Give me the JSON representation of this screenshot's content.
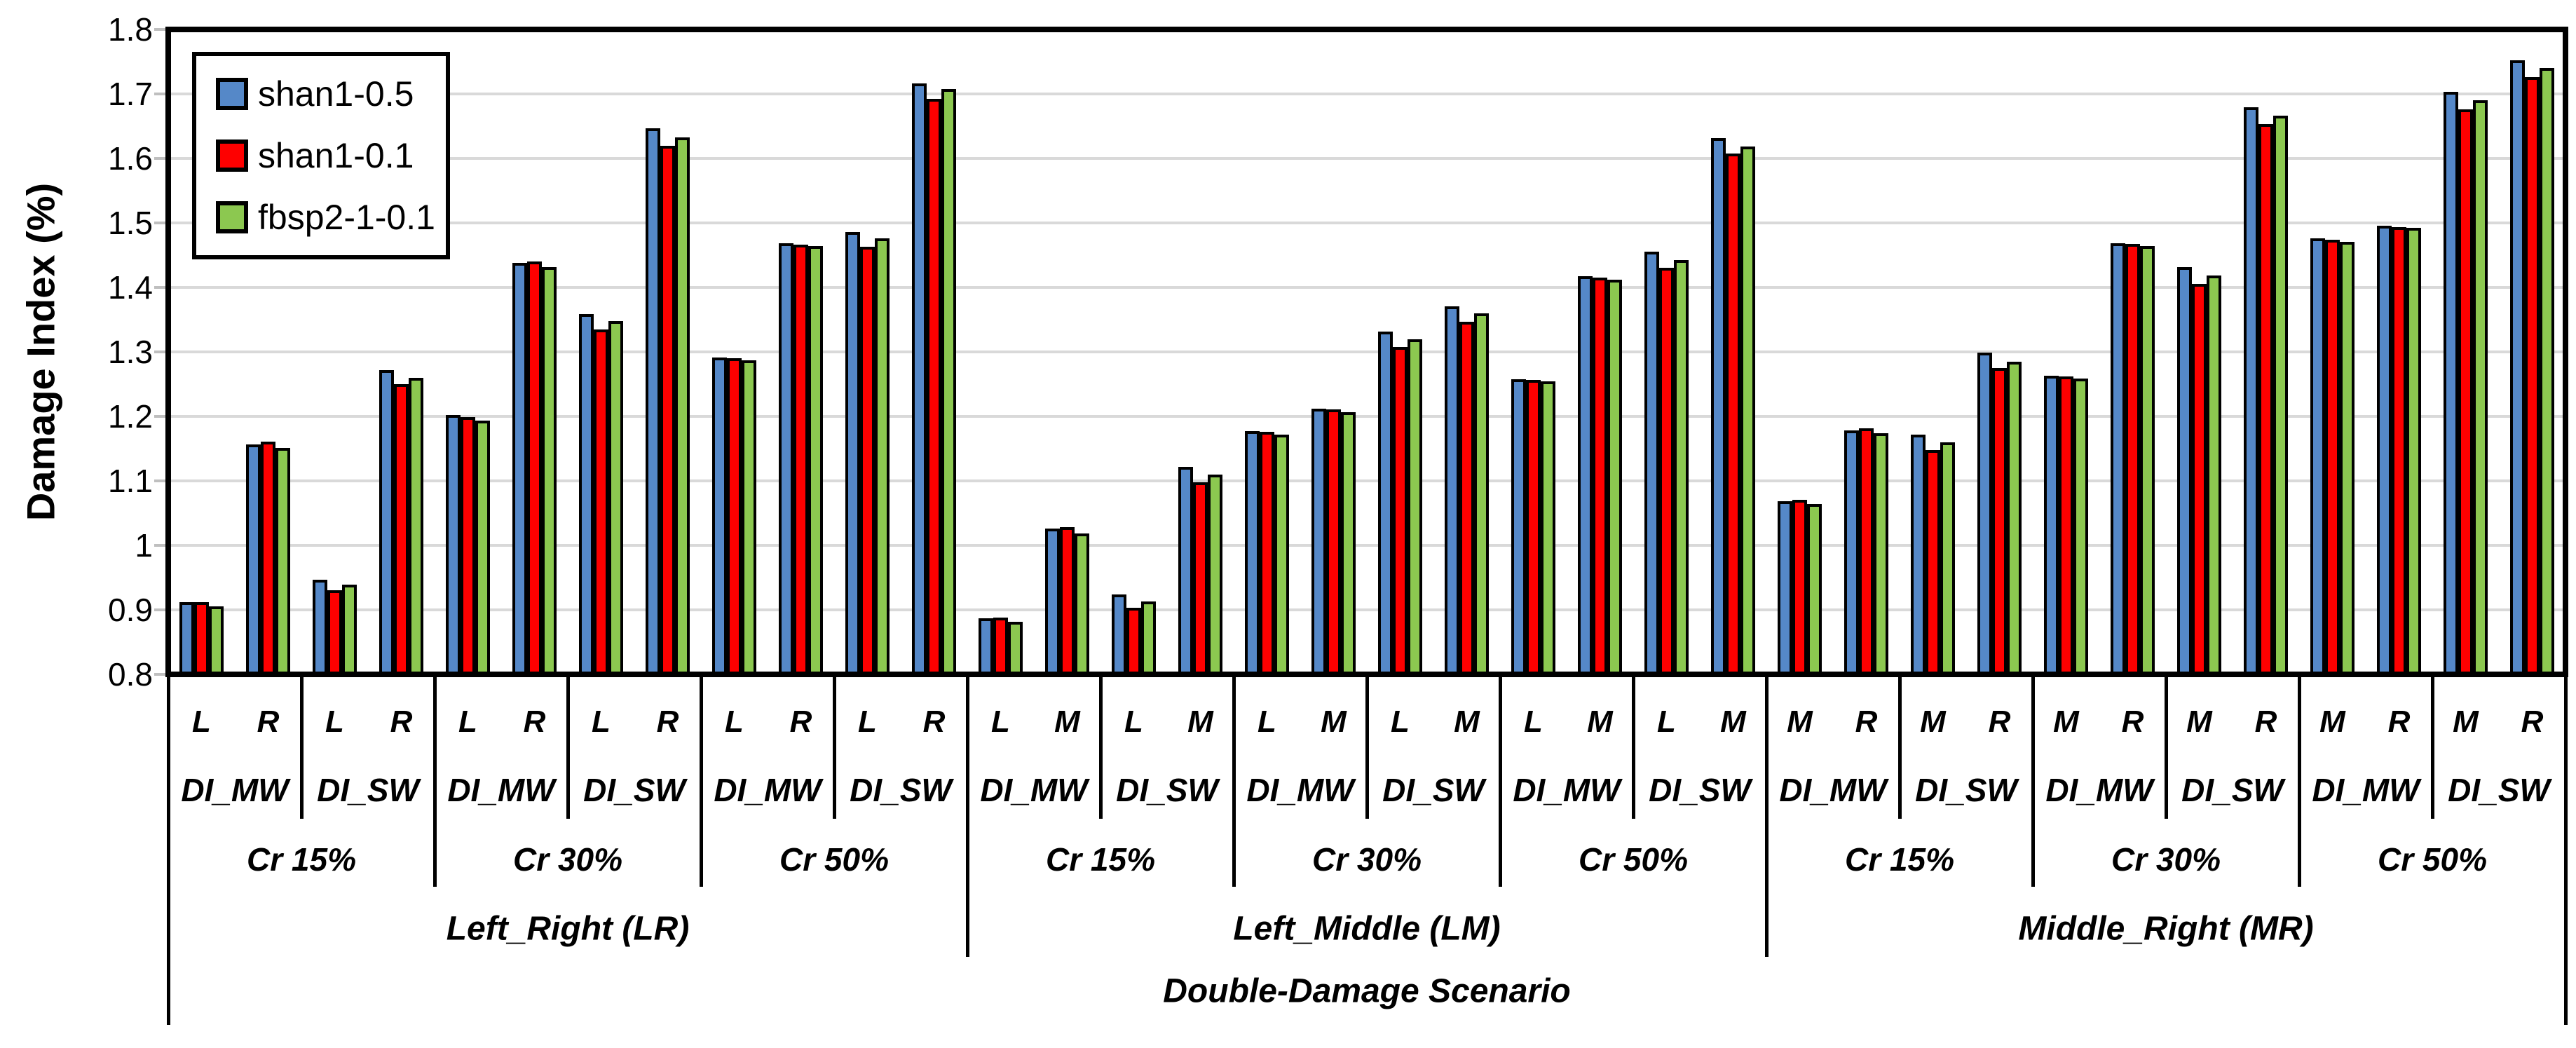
{
  "chart_data": {
    "type": "bar",
    "title": "",
    "ylabel": "Damage Index (%)",
    "xlabel": "Double-Damage Scenario",
    "ylim": [
      0.8,
      1.8
    ],
    "ytick_step": 0.1,
    "yticks": [
      "1.8",
      "1.7",
      "1.6",
      "1.5",
      "1.4",
      "1.3",
      "1.2",
      "1.1",
      "1",
      "0.9",
      "0.8"
    ],
    "grid": "horizontal",
    "legend_position": "top-left-inside",
    "legend": [
      {
        "name": "shan1-0.5",
        "color": "#5588c8"
      },
      {
        "name": "shan1-0.1",
        "color": "#fe0000"
      },
      {
        "name": "fbsp2-1-0.1",
        "color": "#8cc850"
      }
    ],
    "series_order": [
      "shan1-0.5",
      "shan1-0.1",
      "fbsp2-1-0.1"
    ],
    "sections": [
      {
        "label": "Left_Right (LR)",
        "cr_groups": [
          {
            "label": "Cr 15%",
            "di_groups": [
              {
                "label": "DI_MW",
                "positions": [
                  {
                    "pos": "L",
                    "values": [
                      0.912,
                      0.912,
                      0.905
                    ]
                  },
                  {
                    "pos": "R",
                    "values": [
                      1.157,
                      1.161,
                      1.151
                    ]
                  }
                ]
              },
              {
                "label": "DI_SW",
                "positions": [
                  {
                    "pos": "L",
                    "values": [
                      0.947,
                      0.93,
                      0.939
                    ]
                  },
                  {
                    "pos": "R",
                    "values": [
                      1.272,
                      1.25,
                      1.26
                    ]
                  }
                ]
              }
            ]
          },
          {
            "label": "Cr 30%",
            "di_groups": [
              {
                "label": "DI_MW",
                "positions": [
                  {
                    "pos": "L",
                    "values": [
                      1.202,
                      1.199,
                      1.194
                    ]
                  },
                  {
                    "pos": "R",
                    "values": [
                      1.438,
                      1.44,
                      1.431
                    ]
                  }
                ]
              },
              {
                "label": "DI_SW",
                "positions": [
                  {
                    "pos": "L",
                    "values": [
                      1.359,
                      1.335,
                      1.348
                    ]
                  },
                  {
                    "pos": "R",
                    "values": [
                      1.647,
                      1.62,
                      1.633
                    ]
                  }
                ]
              }
            ]
          },
          {
            "label": "Cr 50%",
            "di_groups": [
              {
                "label": "DI_MW",
                "positions": [
                  {
                    "pos": "L",
                    "values": [
                      1.291,
                      1.29,
                      1.287
                    ]
                  },
                  {
                    "pos": "R",
                    "values": [
                      1.468,
                      1.466,
                      1.464
                    ]
                  }
                ]
              },
              {
                "label": "DI_SW",
                "positions": [
                  {
                    "pos": "L",
                    "values": [
                      1.486,
                      1.463,
                      1.476
                    ]
                  },
                  {
                    "pos": "R",
                    "values": [
                      1.716,
                      1.692,
                      1.708
                    ]
                  }
                ]
              }
            ]
          }
        ]
      },
      {
        "label": "Left_Middle (LM)",
        "cr_groups": [
          {
            "label": "Cr 15%",
            "di_groups": [
              {
                "label": "DI_MW",
                "positions": [
                  {
                    "pos": "L",
                    "values": [
                      0.887,
                      0.888,
                      0.881
                    ]
                  },
                  {
                    "pos": "M",
                    "values": [
                      1.026,
                      1.028,
                      1.019
                    ]
                  }
                ]
              },
              {
                "label": "DI_SW",
                "positions": [
                  {
                    "pos": "L",
                    "values": [
                      0.924,
                      0.903,
                      0.913
                    ]
                  },
                  {
                    "pos": "M",
                    "values": [
                      1.122,
                      1.098,
                      1.11
                    ]
                  }
                ]
              }
            ]
          },
          {
            "label": "Cr 30%",
            "di_groups": [
              {
                "label": "DI_MW",
                "positions": [
                  {
                    "pos": "L",
                    "values": [
                      1.177,
                      1.176,
                      1.172
                    ]
                  },
                  {
                    "pos": "M",
                    "values": [
                      1.212,
                      1.211,
                      1.206
                    ]
                  }
                ]
              },
              {
                "label": "DI_SW",
                "positions": [
                  {
                    "pos": "L",
                    "values": [
                      1.332,
                      1.308,
                      1.32
                    ]
                  },
                  {
                    "pos": "M",
                    "values": [
                      1.371,
                      1.347,
                      1.36
                    ]
                  }
                ]
              }
            ]
          },
          {
            "label": "Cr 50%",
            "di_groups": [
              {
                "label": "DI_MW",
                "positions": [
                  {
                    "pos": "L",
                    "values": [
                      1.258,
                      1.257,
                      1.254
                    ]
                  },
                  {
                    "pos": "M",
                    "values": [
                      1.417,
                      1.415,
                      1.412
                    ]
                  }
                ]
              },
              {
                "label": "DI_SW",
                "positions": [
                  {
                    "pos": "L",
                    "values": [
                      1.455,
                      1.43,
                      1.442
                    ]
                  },
                  {
                    "pos": "M",
                    "values": [
                      1.631,
                      1.608,
                      1.619
                    ]
                  }
                ]
              }
            ]
          }
        ]
      },
      {
        "label": "Middle_Right (MR)",
        "cr_groups": [
          {
            "label": "Cr 15%",
            "di_groups": [
              {
                "label": "DI_MW",
                "positions": [
                  {
                    "pos": "M",
                    "values": [
                      1.068,
                      1.071,
                      1.064
                    ]
                  },
                  {
                    "pos": "R",
                    "values": [
                      1.178,
                      1.182,
                      1.174
                    ]
                  }
                ]
              },
              {
                "label": "DI_SW",
                "positions": [
                  {
                    "pos": "M",
                    "values": [
                      1.172,
                      1.148,
                      1.16
                    ]
                  },
                  {
                    "pos": "R",
                    "values": [
                      1.299,
                      1.275,
                      1.285
                    ]
                  }
                ]
              }
            ]
          },
          {
            "label": "Cr 30%",
            "di_groups": [
              {
                "label": "DI_MW",
                "positions": [
                  {
                    "pos": "M",
                    "values": [
                      1.263,
                      1.262,
                      1.259
                    ]
                  },
                  {
                    "pos": "R",
                    "values": [
                      1.468,
                      1.467,
                      1.464
                    ]
                  }
                ]
              },
              {
                "label": "DI_SW",
                "positions": [
                  {
                    "pos": "M",
                    "values": [
                      1.431,
                      1.405,
                      1.418
                    ]
                  },
                  {
                    "pos": "R",
                    "values": [
                      1.679,
                      1.653,
                      1.666
                    ]
                  }
                ]
              }
            ]
          },
          {
            "label": "Cr 50%",
            "di_groups": [
              {
                "label": "DI_MW",
                "positions": [
                  {
                    "pos": "M",
                    "values": [
                      1.476,
                      1.474,
                      1.471
                    ]
                  },
                  {
                    "pos": "R",
                    "values": [
                      1.496,
                      1.494,
                      1.492
                    ]
                  }
                ]
              },
              {
                "label": "DI_SW",
                "positions": [
                  {
                    "pos": "M",
                    "values": [
                      1.703,
                      1.676,
                      1.69
                    ]
                  },
                  {
                    "pos": "R",
                    "values": [
                      1.752,
                      1.726,
                      1.74
                    ]
                  }
                ]
              }
            ]
          }
        ]
      }
    ]
  }
}
